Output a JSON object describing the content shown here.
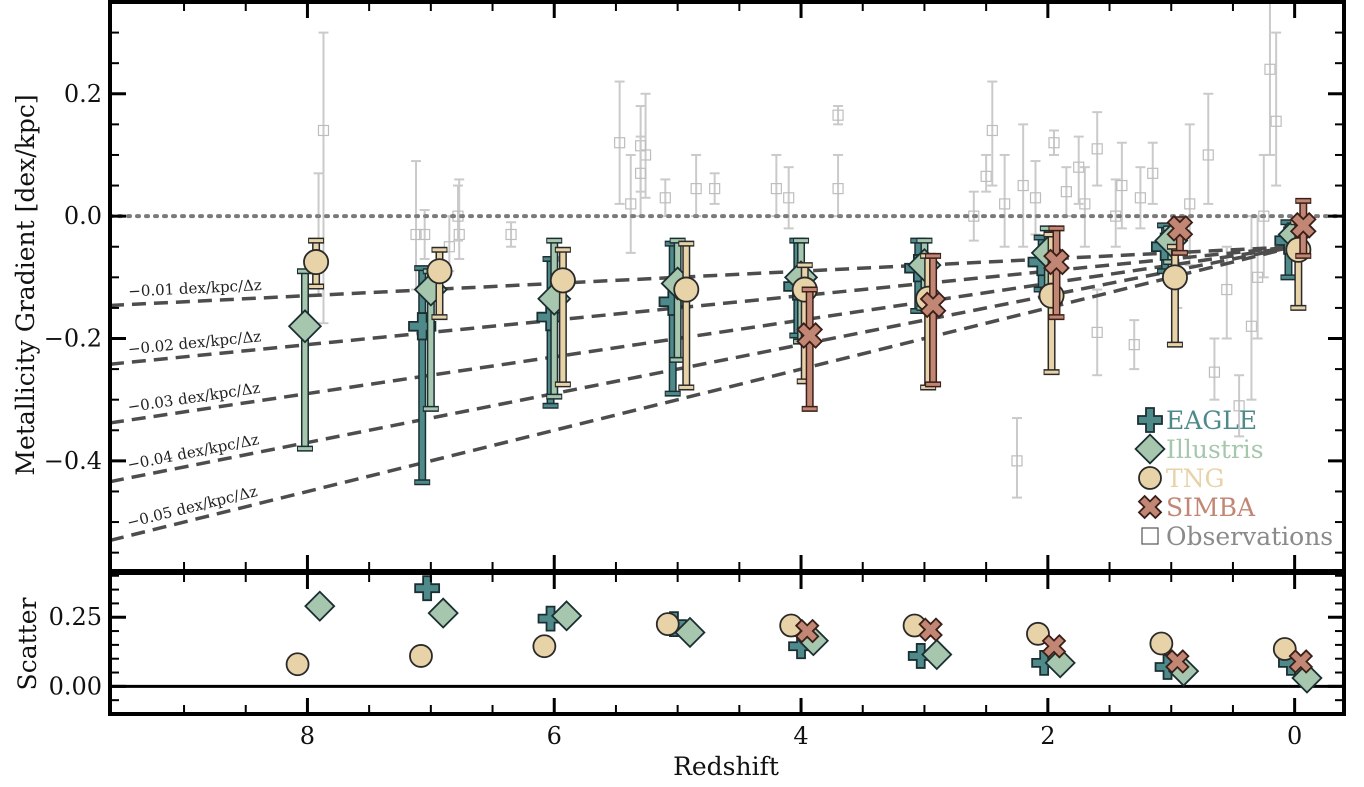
{
  "chart_data": [
    {
      "type": "scatter",
      "panel": "main",
      "xlabel": "",
      "ylabel": "Metallicity Gradient [dex/kpc]",
      "xlim": [
        9.6,
        -0.4
      ],
      "ylim": [
        -0.58,
        0.35
      ],
      "x_reversed": true,
      "x_ticks": [
        8,
        6,
        4,
        2,
        0
      ],
      "x_tick_labels": [
        "8",
        "6",
        "4",
        "2",
        "0"
      ],
      "y_ticks": [
        0.2,
        0.0,
        -0.2,
        -0.4
      ],
      "y_tick_labels": [
        "0.2",
        "0.0",
        "−0.2",
        "−0.4"
      ],
      "zero_line": {
        "y": 0.0,
        "style": "dotted",
        "color": "#777777"
      },
      "reference_lines": [
        {
          "label": "−0.01 dex/kpc/Δz",
          "slope": -0.01,
          "anchor_x": 0,
          "anchor_y": -0.05
        },
        {
          "label": "−0.02 dex/kpc/Δz",
          "slope": -0.02,
          "anchor_x": 0,
          "anchor_y": -0.05
        },
        {
          "label": "−0.03 dex/kpc/Δz",
          "slope": -0.03,
          "anchor_x": 0,
          "anchor_y": -0.05
        },
        {
          "label": "−0.04 dex/kpc/Δz",
          "slope": -0.04,
          "anchor_x": 0,
          "anchor_y": -0.05
        },
        {
          "label": "−0.05 dex/kpc/Δz",
          "slope": -0.05,
          "anchor_x": 0,
          "anchor_y": -0.05
        }
      ],
      "series": [
        {
          "name": "EAGLE",
          "marker": "plus",
          "color": "#4f8a8b",
          "edge": "#1b2f33",
          "points": [
            {
              "x": 7.07,
              "y": -0.18,
              "lo": -0.435,
              "hi": -0.085
            },
            {
              "x": 6.03,
              "y": -0.165,
              "lo": -0.31,
              "hi": -0.07
            },
            {
              "x": 5.04,
              "y": -0.14,
              "lo": -0.29,
              "hi": -0.045
            },
            {
              "x": 4.03,
              "y": -0.115,
              "lo": -0.195,
              "hi": -0.04
            },
            {
              "x": 3.05,
              "y": -0.085,
              "lo": -0.155,
              "hi": -0.04
            },
            {
              "x": 2.05,
              "y": -0.075,
              "lo": -0.12,
              "hi": -0.035
            },
            {
              "x": 1.05,
              "y": -0.05,
              "lo": -0.09,
              "hi": -0.015
            },
            {
              "x": 0.05,
              "y": -0.04,
              "lo": -0.1,
              "hi": -0.01
            }
          ]
        },
        {
          "name": "Illustris",
          "marker": "diamond",
          "color": "#a6c7ad",
          "edge": "#1b2f33",
          "points": [
            {
              "x": 8.02,
              "y": -0.18,
              "lo": -0.38,
              "hi": -0.09
            },
            {
              "x": 7.0,
              "y": -0.12,
              "lo": -0.315,
              "hi": -0.09
            },
            {
              "x": 6.0,
              "y": -0.135,
              "lo": -0.295,
              "hi": -0.04
            },
            {
              "x": 5.0,
              "y": -0.11,
              "lo": -0.235,
              "hi": -0.04
            },
            {
              "x": 4.0,
              "y": -0.1,
              "lo": -0.205,
              "hi": -0.04
            },
            {
              "x": 3.0,
              "y": -0.08,
              "lo": -0.15,
              "hi": -0.04
            },
            {
              "x": 2.0,
              "y": -0.06,
              "lo": -0.12,
              "hi": -0.02
            },
            {
              "x": 1.0,
              "y": -0.04,
              "lo": -0.075,
              "hi": -0.02
            },
            {
              "x": 0.0,
              "y": -0.03,
              "lo": -0.055,
              "hi": -0.015
            }
          ]
        },
        {
          "name": "TNG",
          "marker": "circle",
          "color": "#e8d3a8",
          "edge": "#2a2a2a",
          "points": [
            {
              "x": 7.93,
              "y": -0.075,
              "lo": -0.115,
              "hi": -0.04
            },
            {
              "x": 6.93,
              "y": -0.09,
              "lo": -0.165,
              "hi": -0.055
            },
            {
              "x": 5.93,
              "y": -0.105,
              "lo": -0.275,
              "hi": -0.055
            },
            {
              "x": 4.93,
              "y": -0.12,
              "lo": -0.28,
              "hi": -0.045
            },
            {
              "x": 3.97,
              "y": -0.12,
              "lo": -0.27,
              "hi": -0.08
            },
            {
              "x": 2.97,
              "y": -0.135,
              "lo": -0.28,
              "hi": -0.065
            },
            {
              "x": 1.97,
              "y": -0.13,
              "lo": -0.255,
              "hi": -0.03
            },
            {
              "x": 0.97,
              "y": -0.1,
              "lo": -0.21,
              "hi": -0.05
            },
            {
              "x": -0.03,
              "y": -0.055,
              "lo": -0.15,
              "hi": -0.01
            }
          ]
        },
        {
          "name": "SIMBA",
          "marker": "x",
          "color": "#c28674",
          "edge": "#3a1e18",
          "points": [
            {
              "x": 3.93,
              "y": -0.195,
              "lo": -0.315,
              "hi": -0.12
            },
            {
              "x": 2.93,
              "y": -0.145,
              "lo": -0.275,
              "hi": -0.065
            },
            {
              "x": 1.93,
              "y": -0.075,
              "lo": -0.165,
              "hi": -0.02
            },
            {
              "x": 0.93,
              "y": -0.02,
              "lo": -0.06,
              "hi": -0.005
            },
            {
              "x": -0.07,
              "y": -0.015,
              "lo": -0.065,
              "hi": 0.025
            }
          ]
        },
        {
          "name": "Observations",
          "marker": "square-open",
          "color": "#9a9a9a",
          "edge": "#9a9a9a",
          "points": [
            {
              "x": 7.87,
              "y": 0.14,
              "lo": -0.175,
              "hi": 0.3
            },
            {
              "x": 7.91,
              "y": -0.05,
              "lo": -0.13,
              "hi": 0.07
            },
            {
              "x": 7.12,
              "y": -0.03,
              "lo": -0.12,
              "hi": 0.09
            },
            {
              "x": 7.05,
              "y": -0.03,
              "lo": -0.07,
              "hi": 0.01
            },
            {
              "x": 6.85,
              "y": -0.05,
              "lo": -0.09,
              "hi": 0.0
            },
            {
              "x": 6.77,
              "y": -0.03,
              "lo": -0.07,
              "hi": 0.06
            },
            {
              "x": 6.78,
              "y": 0.0,
              "lo": -0.04,
              "hi": 0.05
            },
            {
              "x": 6.35,
              "y": -0.03,
              "lo": -0.05,
              "hi": -0.01
            },
            {
              "x": 5.47,
              "y": 0.12,
              "lo": 0.02,
              "hi": 0.22
            },
            {
              "x": 5.38,
              "y": 0.02,
              "lo": -0.06,
              "hi": 0.1
            },
            {
              "x": 5.26,
              "y": 0.1,
              "lo": 0.03,
              "hi": 0.2
            },
            {
              "x": 5.3,
              "y": 0.115,
              "lo": 0.04,
              "hi": 0.18
            },
            {
              "x": 5.1,
              "y": 0.03,
              "lo": 0.0,
              "hi": 0.06
            },
            {
              "x": 5.3,
              "y": 0.07,
              "lo": 0.0,
              "hi": 0.13
            },
            {
              "x": 4.85,
              "y": 0.045,
              "lo": 0.0,
              "hi": 0.1
            },
            {
              "x": 4.7,
              "y": 0.045,
              "lo": 0.02,
              "hi": 0.07
            },
            {
              "x": 4.2,
              "y": 0.045,
              "lo": 0.0,
              "hi": 0.1
            },
            {
              "x": 4.1,
              "y": 0.03,
              "lo": -0.02,
              "hi": 0.08
            },
            {
              "x": 3.7,
              "y": 0.165,
              "lo": 0.15,
              "hi": 0.18
            },
            {
              "x": 3.7,
              "y": 0.045,
              "lo": 0.0,
              "hi": 0.1
            },
            {
              "x": 2.5,
              "y": 0.065,
              "lo": 0.04,
              "hi": 0.1
            },
            {
              "x": 2.45,
              "y": 0.14,
              "lo": 0.05,
              "hi": 0.22
            },
            {
              "x": 2.25,
              "y": -0.4,
              "lo": -0.46,
              "hi": -0.33
            },
            {
              "x": 2.2,
              "y": 0.05,
              "lo": -0.05,
              "hi": 0.15
            },
            {
              "x": 2.35,
              "y": 0.02,
              "lo": -0.05,
              "hi": 0.1
            },
            {
              "x": 2.1,
              "y": 0.03,
              "lo": -0.03,
              "hi": 0.09
            },
            {
              "x": 1.95,
              "y": 0.12,
              "lo": 0.1,
              "hi": 0.14
            },
            {
              "x": 1.85,
              "y": 0.04,
              "lo": 0.0,
              "hi": 0.08
            },
            {
              "x": 1.7,
              "y": 0.02,
              "lo": -0.05,
              "hi": 0.08
            },
            {
              "x": 1.6,
              "y": 0.11,
              "lo": 0.05,
              "hi": 0.17
            },
            {
              "x": 1.6,
              "y": -0.19,
              "lo": -0.26,
              "hi": -0.12
            },
            {
              "x": 1.45,
              "y": 0.0,
              "lo": -0.05,
              "hi": 0.06
            },
            {
              "x": 1.3,
              "y": -0.21,
              "lo": -0.25,
              "hi": -0.17
            },
            {
              "x": 1.25,
              "y": 0.03,
              "lo": -0.02,
              "hi": 0.08
            },
            {
              "x": 1.15,
              "y": 0.07,
              "lo": 0.02,
              "hi": 0.12
            },
            {
              "x": 0.85,
              "y": 0.02,
              "lo": -0.08,
              "hi": 0.15
            },
            {
              "x": 0.7,
              "y": 0.1,
              "lo": 0.02,
              "hi": 0.2
            },
            {
              "x": 0.65,
              "y": -0.255,
              "lo": -0.3,
              "hi": -0.2
            },
            {
              "x": 0.55,
              "y": -0.12,
              "lo": -0.2,
              "hi": -0.05
            },
            {
              "x": 0.45,
              "y": -0.31,
              "lo": -0.36,
              "hi": -0.26
            },
            {
              "x": 0.35,
              "y": -0.18,
              "lo": -0.3,
              "hi": 0.0
            },
            {
              "x": 0.2,
              "y": 0.24,
              "lo": 0.1,
              "hi": 0.35
            },
            {
              "x": 0.15,
              "y": 0.155,
              "lo": 0.05,
              "hi": 0.3
            },
            {
              "x": 0.25,
              "y": 0.0,
              "lo": -0.1,
              "hi": 0.1
            },
            {
              "x": 0.3,
              "y": -0.1,
              "lo": -0.2,
              "hi": 0.0
            },
            {
              "x": 1.75,
              "y": 0.08,
              "lo": 0.02,
              "hi": 0.13
            },
            {
              "x": 1.4,
              "y": 0.05,
              "lo": -0.02,
              "hi": 0.12
            },
            {
              "x": 2.6,
              "y": 0.0,
              "lo": -0.04,
              "hi": 0.04
            },
            {
              "x": 0.95,
              "y": -0.1,
              "lo": -0.15,
              "hi": -0.05
            }
          ]
        }
      ]
    },
    {
      "type": "scatter",
      "panel": "scatter",
      "xlabel": "Redshift",
      "ylabel": "Scatter",
      "xlim": [
        9.6,
        -0.4
      ],
      "ylim": [
        -0.1,
        0.41
      ],
      "y_ticks": [
        0.25,
        0.0
      ],
      "y_tick_labels": [
        "0.25",
        "0.00"
      ],
      "x_ticks": [
        8,
        6,
        4,
        2,
        0
      ],
      "x_tick_labels": [
        "8",
        "6",
        "4",
        "2",
        "0"
      ],
      "zero_line": {
        "y": 0.0,
        "style": "solid",
        "color": "#000000"
      },
      "series": [
        {
          "name": "EAGLE",
          "marker": "plus",
          "color": "#4f8a8b",
          "edge": "#1b2f33",
          "points": [
            {
              "x": 7.03,
              "y": 0.355
            },
            {
              "x": 6.03,
              "y": 0.245
            },
            {
              "x": 5.03,
              "y": 0.225
            },
            {
              "x": 4.0,
              "y": 0.145
            },
            {
              "x": 3.03,
              "y": 0.11
            },
            {
              "x": 2.03,
              "y": 0.085
            },
            {
              "x": 1.03,
              "y": 0.07
            },
            {
              "x": 0.03,
              "y": 0.085
            }
          ]
        },
        {
          "name": "Illustris",
          "marker": "diamond",
          "color": "#a6c7ad",
          "edge": "#1b2f33",
          "points": [
            {
              "x": 7.9,
              "y": 0.29
            },
            {
              "x": 6.9,
              "y": 0.265
            },
            {
              "x": 5.9,
              "y": 0.255
            },
            {
              "x": 4.9,
              "y": 0.195
            },
            {
              "x": 3.9,
              "y": 0.165
            },
            {
              "x": 2.9,
              "y": 0.115
            },
            {
              "x": 1.9,
              "y": 0.085
            },
            {
              "x": 0.9,
              "y": 0.055
            },
            {
              "x": -0.1,
              "y": 0.03
            }
          ]
        },
        {
          "name": "TNG",
          "marker": "circle",
          "color": "#e8d3a8",
          "edge": "#2a2a2a",
          "points": [
            {
              "x": 8.08,
              "y": 0.08
            },
            {
              "x": 7.08,
              "y": 0.11
            },
            {
              "x": 6.08,
              "y": 0.145
            },
            {
              "x": 5.08,
              "y": 0.225
            },
            {
              "x": 4.08,
              "y": 0.22
            },
            {
              "x": 3.08,
              "y": 0.22
            },
            {
              "x": 2.08,
              "y": 0.19
            },
            {
              "x": 1.08,
              "y": 0.155
            },
            {
              "x": 0.08,
              "y": 0.135
            }
          ]
        },
        {
          "name": "SIMBA",
          "marker": "x",
          "color": "#c28674",
          "edge": "#3a1e18",
          "points": [
            {
              "x": 3.95,
              "y": 0.2
            },
            {
              "x": 2.95,
              "y": 0.205
            },
            {
              "x": 1.95,
              "y": 0.145
            },
            {
              "x": 0.95,
              "y": 0.09
            },
            {
              "x": -0.05,
              "y": 0.09
            }
          ]
        }
      ]
    }
  ]
}
